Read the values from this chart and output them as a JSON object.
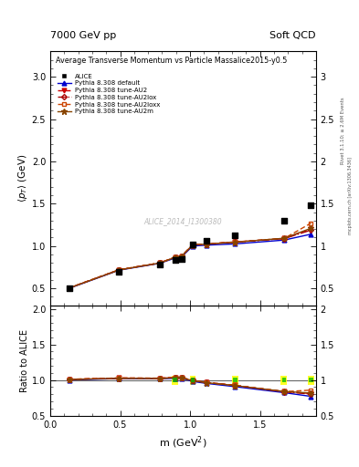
{
  "title_left": "7000 GeV pp",
  "title_right": "Soft QCD",
  "main_title": "Average Transverse Momentum vs Particle Mass",
  "subtitle": "alice2015-y0.5",
  "watermark": "ALICE_2014_I1300380",
  "ratio_ylabel": "Ratio to ALICE",
  "xlabel": "m (GeV$^2$)",
  "right_label1": "Rivet 3.1.10; ≥ 2.6M Events",
  "right_label2": "mcplots.cern.ch [arXiv:1306.3436]",
  "x": [
    0.135,
    0.493,
    0.782,
    0.896,
    0.938,
    1.019,
    1.115,
    1.321,
    1.672,
    1.865
  ],
  "alice": [
    0.5,
    0.7,
    0.78,
    0.84,
    0.85,
    1.02,
    1.06,
    1.13,
    1.3,
    1.48
  ],
  "pythia_default": [
    0.5,
    0.715,
    0.795,
    0.86,
    0.87,
    1.0,
    1.01,
    1.025,
    1.07,
    1.14
  ],
  "pythia_au2": [
    0.505,
    0.72,
    0.8,
    0.87,
    0.88,
    1.015,
    1.025,
    1.048,
    1.09,
    1.2
  ],
  "pythia_au2lox": [
    0.504,
    0.719,
    0.799,
    0.869,
    0.879,
    1.013,
    1.023,
    1.046,
    1.087,
    1.188
  ],
  "pythia_au2loxx": [
    0.505,
    0.72,
    0.8,
    0.87,
    0.88,
    1.014,
    1.024,
    1.047,
    1.089,
    1.27
  ],
  "pythia_au2m": [
    0.503,
    0.718,
    0.798,
    0.868,
    0.878,
    1.012,
    1.022,
    1.045,
    1.092,
    1.21
  ],
  "color_default": "#0000cc",
  "color_au2": "#cc0000",
  "color_au2lox": "#aa0000",
  "color_au2loxx": "#cc4400",
  "color_au2m": "#884400",
  "ylim_main": [
    0.3,
    3.3
  ],
  "ylim_ratio": [
    0.5,
    2.05
  ],
  "xlim": [
    0.0,
    1.9
  ],
  "yticks_main": [
    0.5,
    1.0,
    1.5,
    2.0,
    2.5,
    3.0
  ],
  "yticks_ratio": [
    0.5,
    1.0,
    1.5,
    2.0
  ],
  "ratio_default": [
    1.0,
    1.021,
    1.019,
    1.024,
    1.024,
    0.98,
    0.953,
    0.907,
    0.823,
    0.77
  ],
  "ratio_au2": [
    1.01,
    1.029,
    1.026,
    1.036,
    1.035,
    0.995,
    0.967,
    0.926,
    0.838,
    0.811
  ],
  "ratio_au2lox": [
    1.008,
    1.027,
    1.024,
    1.034,
    1.033,
    0.993,
    0.965,
    0.924,
    0.835,
    0.802
  ],
  "ratio_au2loxx": [
    1.01,
    1.028,
    1.025,
    1.035,
    1.034,
    0.994,
    0.966,
    0.925,
    0.837,
    0.858
  ],
  "ratio_au2m": [
    1.006,
    1.025,
    1.022,
    1.032,
    1.031,
    0.992,
    0.963,
    0.922,
    0.84,
    0.817
  ],
  "bg_color": "#ffffff"
}
